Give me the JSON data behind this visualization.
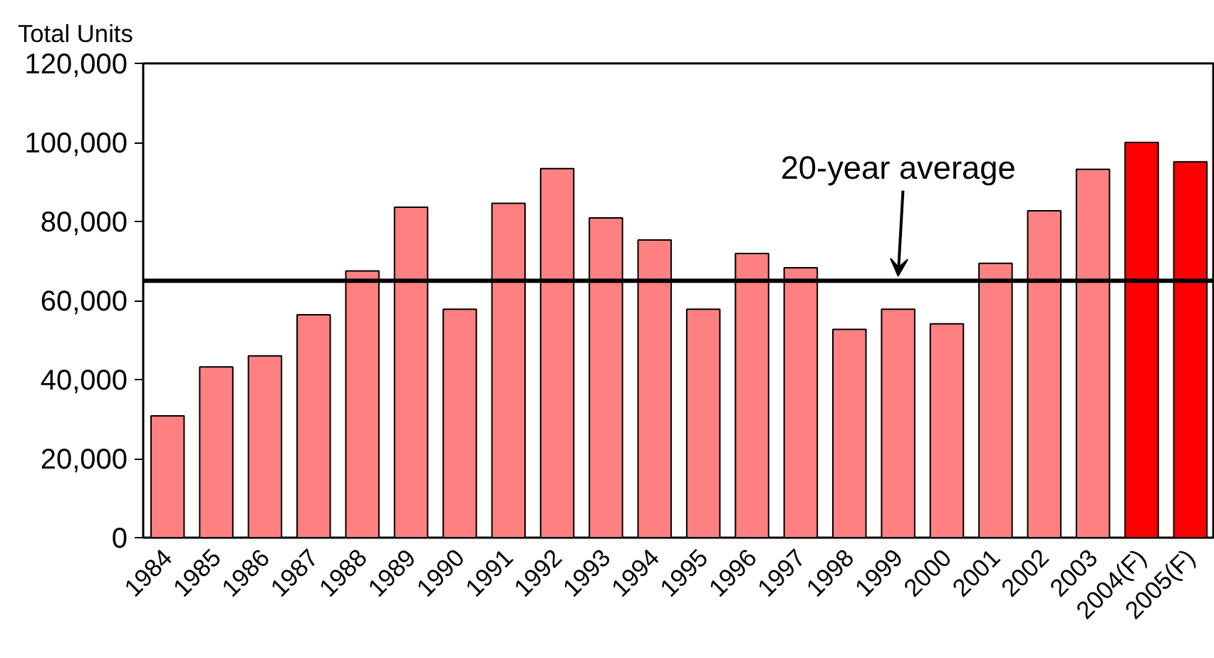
{
  "chart_data": {
    "type": "bar",
    "ylabel": "Total Units",
    "categories": [
      "1984",
      "1985",
      "1986",
      "1987",
      "1988",
      "1989",
      "1990",
      "1991",
      "1992",
      "1993",
      "1994",
      "1995",
      "1996",
      "1997",
      "1998",
      "1999",
      "2000",
      "2001",
      "2002",
      "2003",
      "2004(F)",
      "2005(F)"
    ],
    "values": [
      30800,
      43200,
      46000,
      56400,
      67500,
      83600,
      57800,
      84600,
      93400,
      80900,
      75300,
      57800,
      71900,
      68300,
      52700,
      57800,
      54100,
      69400,
      82700,
      93200,
      100000,
      95100
    ],
    "colors": [
      "#ff8080",
      "#ff8080",
      "#ff8080",
      "#ff8080",
      "#ff8080",
      "#ff8080",
      "#ff8080",
      "#ff8080",
      "#ff8080",
      "#ff8080",
      "#ff8080",
      "#ff8080",
      "#ff8080",
      "#ff8080",
      "#ff8080",
      "#ff8080",
      "#ff8080",
      "#ff8080",
      "#ff8080",
      "#ff8080",
      "#ff0000",
      "#ff0000"
    ],
    "ylim": [
      0,
      120000
    ],
    "yticks": [
      {
        "value": 0,
        "label": "0"
      },
      {
        "value": 20000,
        "label": "20,000"
      },
      {
        "value": 40000,
        "label": "40,000"
      },
      {
        "value": 60000,
        "label": "60,000"
      },
      {
        "value": 80000,
        "label": "80,000"
      },
      {
        "value": 100000,
        "label": "100,000"
      },
      {
        "value": 120000,
        "label": "120,000"
      }
    ],
    "ref_lines": [
      {
        "axis": "y",
        "value": 65000,
        "color": "#000000"
      }
    ],
    "annotations": [
      {
        "text": "20-year average",
        "x": "1999",
        "y": 65000
      }
    ],
    "grid": false
  }
}
